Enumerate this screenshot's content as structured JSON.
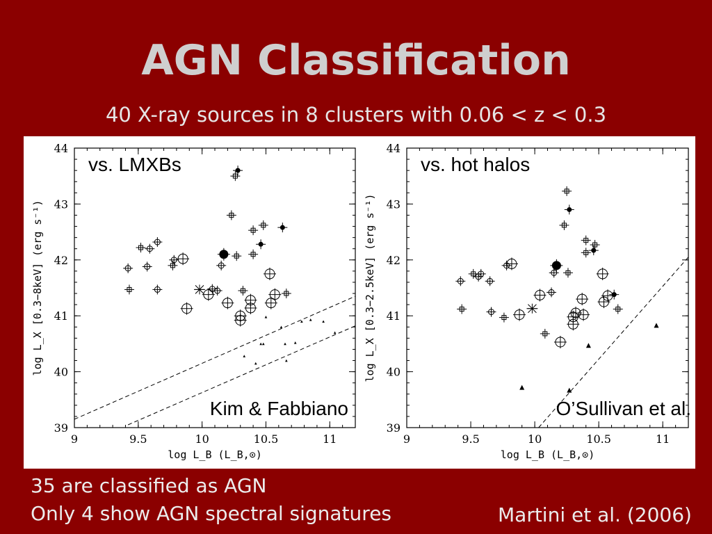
{
  "slide": {
    "title": "AGN Classification",
    "subtitle": "40 X-ray sources in 8 clusters with 0.06 < z < 0.3",
    "bullets": [
      "35 are classified as AGN",
      "Only 4 show AGN spectral signatures"
    ],
    "citation": "Martini et al. (2006)"
  },
  "chart_data": [
    {
      "type": "scatter",
      "annotation": "vs. LMXBs",
      "credit": "Kim & Fabbiano",
      "xlabel": "log L_B (L_B,⊙)",
      "ylabel": "log L_X [0.3−8keV] (erg s⁻¹)",
      "xlim": [
        9,
        11.2
      ],
      "ylim": [
        39,
        44
      ],
      "xticks": [
        "9",
        "9.5",
        "10",
        "10.5",
        "11"
      ],
      "yticks": [
        "39",
        "40",
        "41",
        "42",
        "43",
        "44"
      ],
      "points": [
        {
          "x": 9.42,
          "y": 41.85,
          "m": "open"
        },
        {
          "x": 9.43,
          "y": 41.47,
          "m": "square"
        },
        {
          "x": 9.52,
          "y": 42.22,
          "m": "square"
        },
        {
          "x": 9.57,
          "y": 41.88,
          "m": "open"
        },
        {
          "x": 9.59,
          "y": 42.2,
          "m": "open"
        },
        {
          "x": 9.65,
          "y": 42.32,
          "m": "open"
        },
        {
          "x": 9.65,
          "y": 41.47,
          "m": "open"
        },
        {
          "x": 9.77,
          "y": 41.9,
          "m": "square"
        },
        {
          "x": 9.78,
          "y": 42.0,
          "m": "open"
        },
        {
          "x": 9.85,
          "y": 42.02,
          "m": "bigopen"
        },
        {
          "x": 9.88,
          "y": 41.13,
          "m": "bigopen"
        },
        {
          "x": 9.98,
          "y": 41.47,
          "m": "star"
        },
        {
          "x": 10.05,
          "y": 41.38,
          "m": "bigopen"
        },
        {
          "x": 10.08,
          "y": 41.48,
          "m": "open"
        },
        {
          "x": 10.12,
          "y": 41.45,
          "m": "open"
        },
        {
          "x": 10.15,
          "y": 41.9,
          "m": "open"
        },
        {
          "x": 10.17,
          "y": 42.1,
          "m": "bigfilled"
        },
        {
          "x": 10.2,
          "y": 41.23,
          "m": "bigopen"
        },
        {
          "x": 10.23,
          "y": 42.8,
          "m": "square"
        },
        {
          "x": 10.26,
          "y": 43.5,
          "m": "square"
        },
        {
          "x": 10.28,
          "y": 43.6,
          "m": "filled"
        },
        {
          "x": 10.27,
          "y": 42.07,
          "m": "square"
        },
        {
          "x": 10.3,
          "y": 40.92,
          "m": "bigopen"
        },
        {
          "x": 10.3,
          "y": 41.0,
          "m": "bigopen"
        },
        {
          "x": 10.32,
          "y": 41.45,
          "m": "square"
        },
        {
          "x": 10.38,
          "y": 41.28,
          "m": "bigopen"
        },
        {
          "x": 10.38,
          "y": 41.14,
          "m": "bigopen"
        },
        {
          "x": 10.4,
          "y": 42.53,
          "m": "square"
        },
        {
          "x": 10.4,
          "y": 42.1,
          "m": "square"
        },
        {
          "x": 10.46,
          "y": 42.28,
          "m": "filled"
        },
        {
          "x": 10.48,
          "y": 42.62,
          "m": "square"
        },
        {
          "x": 10.53,
          "y": 41.75,
          "m": "bigopen"
        },
        {
          "x": 10.54,
          "y": 41.23,
          "m": "bigopen"
        },
        {
          "x": 10.57,
          "y": 41.38,
          "m": "bigopen"
        },
        {
          "x": 10.63,
          "y": 42.58,
          "m": "filled"
        },
        {
          "x": 10.66,
          "y": 41.4,
          "m": "square"
        },
        {
          "x": 10.33,
          "y": 40.28,
          "m": "tri"
        },
        {
          "x": 10.42,
          "y": 40.15,
          "m": "tri"
        },
        {
          "x": 10.46,
          "y": 40.5,
          "m": "tri"
        },
        {
          "x": 10.48,
          "y": 40.5,
          "m": "tri"
        },
        {
          "x": 10.62,
          "y": 40.8,
          "m": "tri"
        },
        {
          "x": 10.65,
          "y": 40.5,
          "m": "tri"
        },
        {
          "x": 10.66,
          "y": 40.2,
          "m": "tri"
        },
        {
          "x": 10.73,
          "y": 40.52,
          "m": "tri"
        },
        {
          "x": 10.78,
          "y": 40.9,
          "m": "tri"
        },
        {
          "x": 10.85,
          "y": 40.93,
          "m": "tri"
        },
        {
          "x": 10.95,
          "y": 40.9,
          "m": "tri"
        },
        {
          "x": 11.04,
          "y": 40.7,
          "m": "tri"
        },
        {
          "x": 10.5,
          "y": 40.98,
          "m": "tri"
        }
      ],
      "lines": [
        [
          [
            9,
            39.15
          ],
          [
            11.2,
            41.35
          ]
        ],
        [
          [
            9.42,
            39.05
          ],
          [
            11.2,
            40.82
          ]
        ]
      ]
    },
    {
      "type": "scatter",
      "annotation": "vs. hot halos",
      "credit": "O’Sullivan et al.",
      "xlabel": "log L_B (L_B,⊙)",
      "ylabel": "log L_X [0.3−2.5keV] (erg s⁻¹)",
      "xlim": [
        9,
        11.2
      ],
      "ylim": [
        39,
        44
      ],
      "xticks": [
        "9",
        "9.5",
        "10",
        "10.5",
        "11"
      ],
      "yticks": [
        "39",
        "40",
        "41",
        "42",
        "43",
        "44"
      ],
      "points": [
        {
          "x": 9.42,
          "y": 41.62,
          "m": "open"
        },
        {
          "x": 9.43,
          "y": 41.12,
          "m": "square"
        },
        {
          "x": 9.52,
          "y": 41.75,
          "m": "square"
        },
        {
          "x": 9.56,
          "y": 41.7,
          "m": "open"
        },
        {
          "x": 9.58,
          "y": 41.75,
          "m": "open"
        },
        {
          "x": 9.65,
          "y": 41.62,
          "m": "open"
        },
        {
          "x": 9.66,
          "y": 41.07,
          "m": "open"
        },
        {
          "x": 9.76,
          "y": 40.97,
          "m": "square"
        },
        {
          "x": 9.78,
          "y": 41.9,
          "m": "open"
        },
        {
          "x": 9.82,
          "y": 41.93,
          "m": "bigopen"
        },
        {
          "x": 9.88,
          "y": 41.02,
          "m": "bigopen"
        },
        {
          "x": 9.98,
          "y": 41.13,
          "m": "star"
        },
        {
          "x": 10.04,
          "y": 41.37,
          "m": "bigopen"
        },
        {
          "x": 10.08,
          "y": 40.68,
          "m": "square"
        },
        {
          "x": 10.13,
          "y": 41.42,
          "m": "open"
        },
        {
          "x": 10.15,
          "y": 41.77,
          "m": "open"
        },
        {
          "x": 10.17,
          "y": 41.9,
          "m": "bigfilled"
        },
        {
          "x": 10.2,
          "y": 40.53,
          "m": "bigopen"
        },
        {
          "x": 10.23,
          "y": 42.62,
          "m": "square"
        },
        {
          "x": 10.25,
          "y": 43.23,
          "m": "square"
        },
        {
          "x": 10.27,
          "y": 42.9,
          "m": "filled"
        },
        {
          "x": 10.26,
          "y": 41.77,
          "m": "square"
        },
        {
          "x": 10.3,
          "y": 40.85,
          "m": "bigopen"
        },
        {
          "x": 10.3,
          "y": 40.98,
          "m": "bigopen"
        },
        {
          "x": 10.32,
          "y": 41.05,
          "m": "bigopen"
        },
        {
          "x": 10.37,
          "y": 41.3,
          "m": "bigopen"
        },
        {
          "x": 10.38,
          "y": 41.02,
          "m": "bigopen"
        },
        {
          "x": 10.4,
          "y": 42.35,
          "m": "square"
        },
        {
          "x": 10.4,
          "y": 42.13,
          "m": "square"
        },
        {
          "x": 10.46,
          "y": 42.17,
          "m": "filled"
        },
        {
          "x": 10.47,
          "y": 42.27,
          "m": "square"
        },
        {
          "x": 10.53,
          "y": 41.75,
          "m": "bigopen"
        },
        {
          "x": 10.54,
          "y": 41.25,
          "m": "bigopen"
        },
        {
          "x": 10.57,
          "y": 41.36,
          "m": "bigopen"
        },
        {
          "x": 10.62,
          "y": 41.38,
          "m": "filled"
        },
        {
          "x": 10.65,
          "y": 41.12,
          "m": "square"
        },
        {
          "x": 9.9,
          "y": 39.72,
          "m": "tri"
        },
        {
          "x": 10.27,
          "y": 39.67,
          "m": "tri"
        },
        {
          "x": 10.42,
          "y": 40.47,
          "m": "tri"
        },
        {
          "x": 10.95,
          "y": 40.83,
          "m": "tri"
        }
      ],
      "lines": [
        [
          [
            10.03,
            39
          ],
          [
            11.2,
            42.05
          ]
        ]
      ]
    }
  ]
}
